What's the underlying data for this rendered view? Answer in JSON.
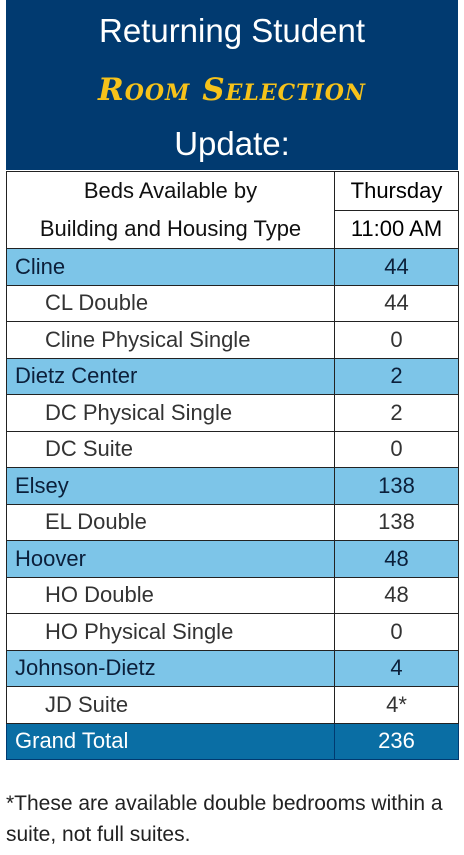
{
  "header": {
    "title": "Returning Student",
    "highlight": "Room Selection",
    "subtitle": "Update:"
  },
  "table": {
    "column_header": {
      "label": [
        "Beds Available by",
        "Building and Housing Type"
      ],
      "day": "Thursday",
      "time": "11:00 AM"
    },
    "buildings": [
      {
        "name": "Cline",
        "total": 44,
        "units": [
          {
            "name": "CL Double",
            "count": 44
          },
          {
            "name": "Cline Physical Single",
            "count": 0
          }
        ]
      },
      {
        "name": "Dietz Center",
        "total": 2,
        "units": [
          {
            "name": "DC Physical Single",
            "count": 2
          },
          {
            "name": "DC Suite",
            "count": 0
          }
        ]
      },
      {
        "name": "Elsey",
        "total": 138,
        "units": [
          {
            "name": "EL Double",
            "count": 138
          }
        ]
      },
      {
        "name": "Hoover",
        "total": 48,
        "units": [
          {
            "name": "HO Double",
            "count": 48
          },
          {
            "name": "HO Physical Single",
            "count": 0
          }
        ]
      },
      {
        "name": "Johnson-Dietz",
        "total": 4,
        "units": [
          {
            "name": "JD Suite",
            "count": "4*"
          }
        ]
      }
    ],
    "grand_total": {
      "label": "Grand Total",
      "value": 236
    }
  },
  "footnote": "*These are available double bedrooms within a suite, not full suites."
}
